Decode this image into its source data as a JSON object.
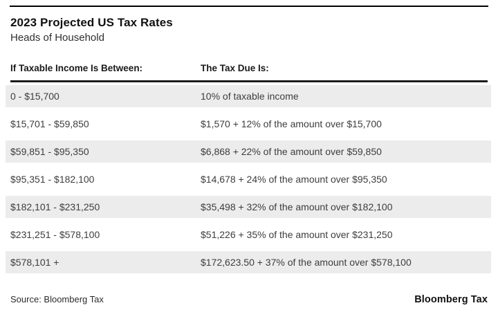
{
  "chart_data": {
    "type": "table",
    "title": "2023 Projected US Tax Rates",
    "subtitle": "Heads of Household",
    "columns": [
      "If Taxable Income Is Between:",
      "The Tax Due Is:"
    ],
    "rows": [
      {
        "income": "0 - $15,700",
        "tax": "10% of taxable income"
      },
      {
        "income": "$15,701 - $59,850",
        "tax": "$1,570 + 12% of the amount over $15,700"
      },
      {
        "income": "$59,851 - $95,350",
        "tax": "$6,868 + 22% of the amount over $59,850"
      },
      {
        "income": "$95,351 - $182,100",
        "tax": "$14,678 + 24% of the amount over $95,350"
      },
      {
        "income": "$182,101 - $231,250",
        "tax": "$35,498 + 32% of the amount over $182,100"
      },
      {
        "income": "$231,251 - $578,100",
        "tax": "$51,226 + 35% of the amount over $231,250"
      },
      {
        "income": "$578,101 +",
        "tax": "$172,623.50 + 37% of the amount over $578,100"
      }
    ],
    "layout": {
      "striped_rows": "odd",
      "stripe_color": "#ececec",
      "rule_color": "#1c1c1c",
      "background": "#ffffff"
    }
  },
  "footer": {
    "source": "Source: Bloomberg Tax",
    "logo": "Bloomberg Tax"
  }
}
